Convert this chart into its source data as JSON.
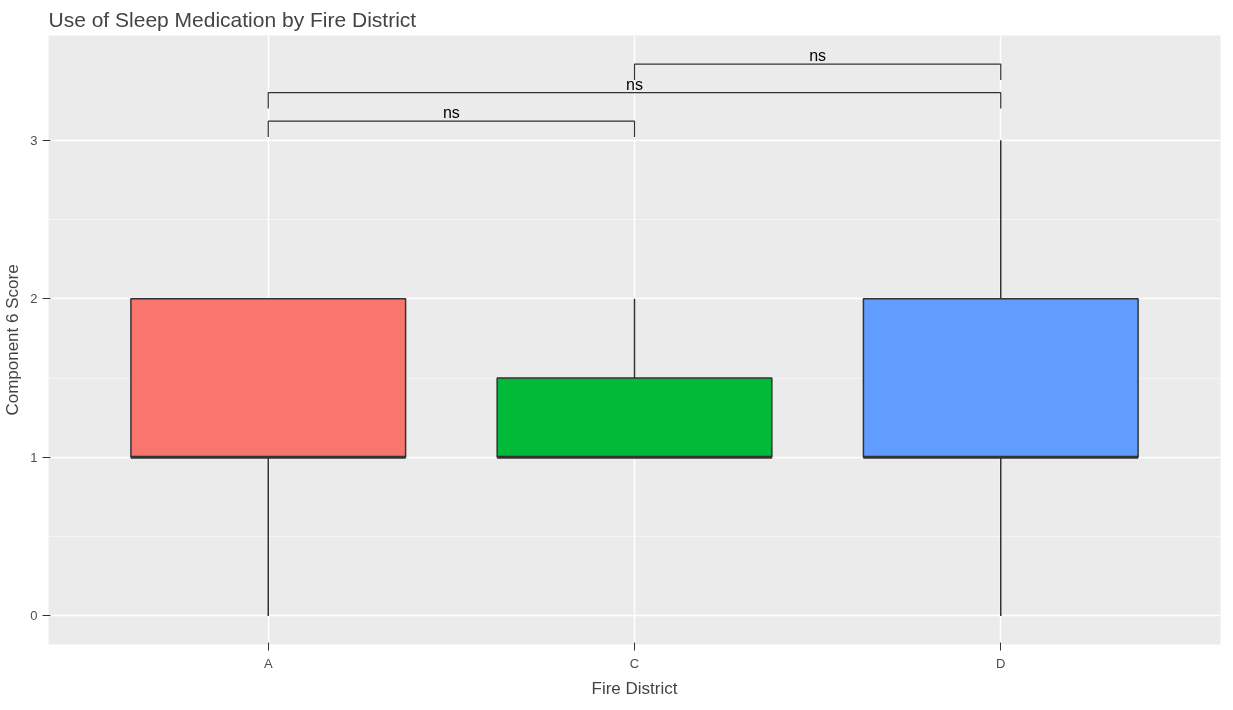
{
  "chart_data": {
    "type": "box",
    "title": "Use of Sleep Medication by Fire District",
    "xlabel": "Fire District",
    "ylabel": "Component 6 Score",
    "categories": [
      "A",
      "C",
      "D"
    ],
    "colors": [
      "#f8766d",
      "#00ba38",
      "#619cff"
    ],
    "boxes": [
      {
        "low": 0,
        "q1": 1,
        "median": 1,
        "q3": 2,
        "high": 2
      },
      {
        "low": 1,
        "q1": 1,
        "median": 1,
        "q3": 1.5,
        "high": 2
      },
      {
        "low": 0,
        "q1": 1,
        "median": 1,
        "q3": 2,
        "high": 3
      }
    ],
    "ylim": [
      -0.18,
      3.66
    ],
    "yticks": [
      0,
      1,
      2,
      3
    ],
    "grid": true,
    "annotations": [
      "ns",
      "ns",
      "ns"
    ]
  }
}
